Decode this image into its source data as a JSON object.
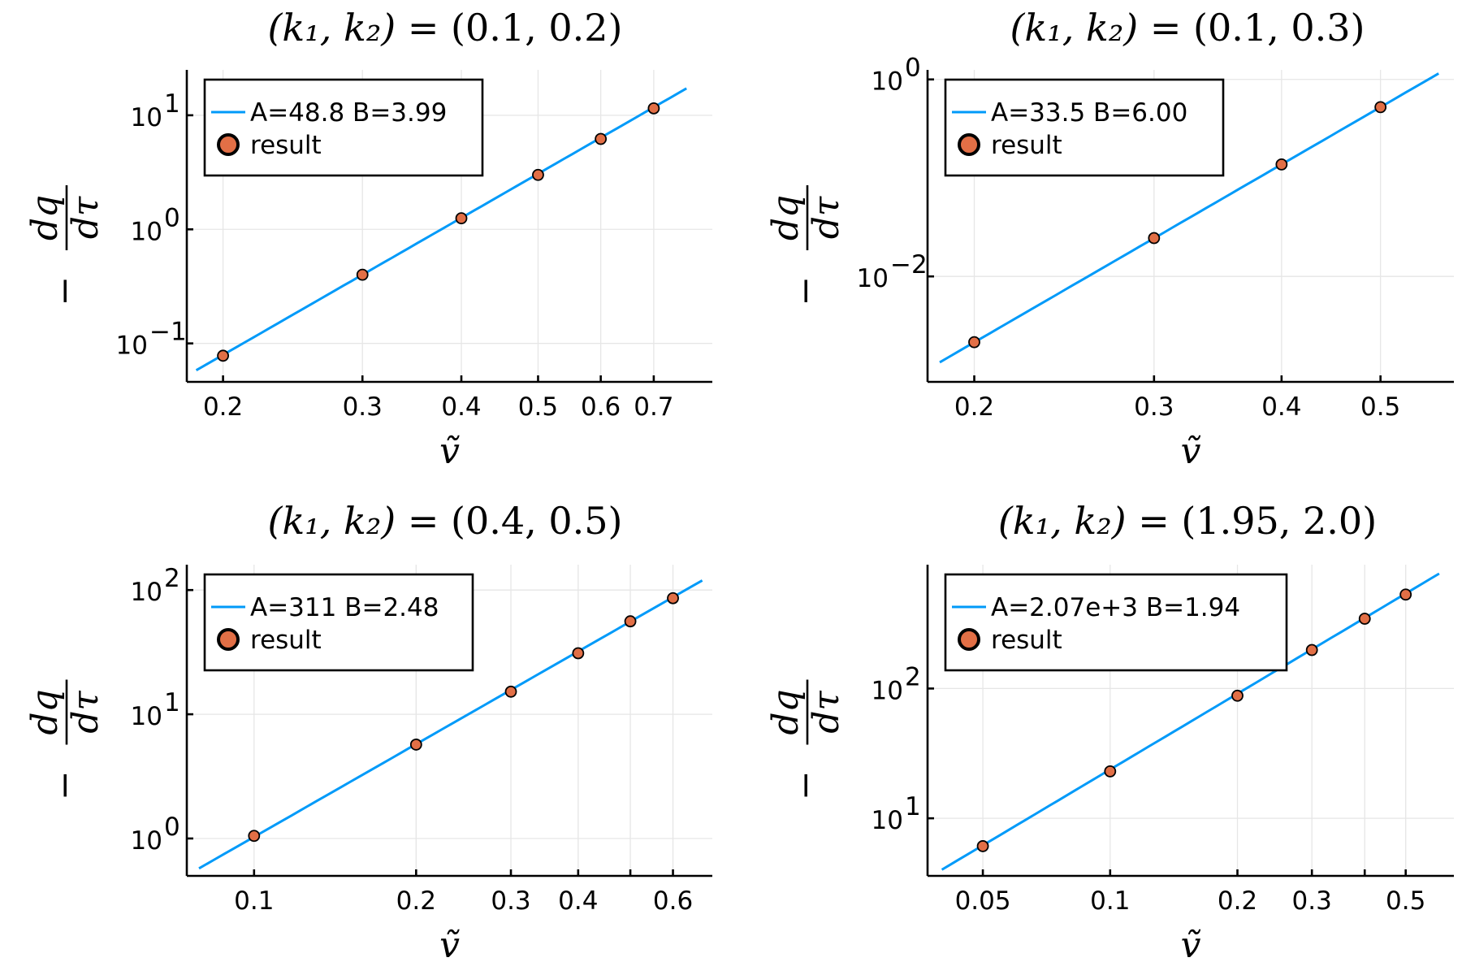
{
  "colors": {
    "fit_line": "#009af9",
    "points": "#e26f46",
    "axis": "#000000",
    "grid": "#e6e6e6"
  },
  "chart_data": [
    {
      "type": "scatter",
      "title_k": "(k₁, k₂)",
      "title_values": "(0.1, 0.2)",
      "xlabel": "ṽ",
      "ylabel": "−dq/dτ",
      "xscale": "log",
      "yscale": "log",
      "xlim": [
        0.18,
        0.83
      ],
      "ylim": [
        0.046,
        25
      ],
      "xticks": [
        0.2,
        0.3,
        0.4,
        0.5,
        0.6,
        0.7
      ],
      "xtick_labels": [
        "0.2",
        "0.3",
        "0.4",
        "0.5",
        "0.6",
        "0.7"
      ],
      "ytick_exponents": [
        "−1",
        "0",
        "1"
      ],
      "ytick_values": [
        0.1,
        1,
        10
      ],
      "grid": true,
      "legend_position": "top-left",
      "fit": {
        "label": "A=48.8 B=3.99",
        "A": 48.8,
        "B": 3.99,
        "x_range": [
          0.185,
          0.77
        ]
      },
      "series": [
        {
          "name": "result",
          "x": [
            0.2,
            0.3,
            0.4,
            0.5,
            0.6,
            0.7
          ],
          "y": [
            0.078,
            0.4,
            1.25,
            3.0,
            6.2,
            11.5
          ]
        }
      ]
    },
    {
      "type": "scatter",
      "title_k": "(k₁, k₂)",
      "title_values": "(0.1, 0.3)",
      "xlabel": "ṽ",
      "ylabel": "−dq/dτ",
      "xscale": "log",
      "yscale": "log",
      "xlim": [
        0.18,
        0.59
      ],
      "ylim": [
        0.00085,
        1.25
      ],
      "xticks": [
        0.2,
        0.3,
        0.4,
        0.5
      ],
      "xtick_labels": [
        "0.2",
        "0.3",
        "0.4",
        "0.5"
      ],
      "ytick_exponents": [
        "−2",
        "0"
      ],
      "ytick_values": [
        0.01,
        1
      ],
      "grid": true,
      "legend_position": "top-left",
      "fit": {
        "label": "A=33.5 B=6.00",
        "A": 33.5,
        "B": 6.0,
        "x_range": [
          0.185,
          0.57
        ]
      },
      "series": [
        {
          "name": "result",
          "x": [
            0.2,
            0.3,
            0.4,
            0.5
          ],
          "y": [
            0.00215,
            0.0245,
            0.137,
            0.523
          ]
        }
      ]
    },
    {
      "type": "scatter",
      "title_k": "(k₁, k₂)",
      "title_values": "(0.4, 0.5)",
      "xlabel": "ṽ",
      "ylabel": "−dq/dτ",
      "xscale": "log",
      "yscale": "log",
      "xlim": [
        0.075,
        0.71
      ],
      "ylim": [
        0.5,
        160
      ],
      "xticks": [
        0.1,
        0.2,
        0.3,
        0.4,
        0.5,
        0.6
      ],
      "xtick_labels": [
        "0.1",
        "0.2",
        "0.3",
        "0.4",
        "",
        "0.6"
      ],
      "ytick_exponents": [
        "0",
        "1",
        "2"
      ],
      "ytick_values": [
        1,
        10,
        100
      ],
      "grid": true,
      "legend_position": "top-left",
      "fit": {
        "label": "A=311 B=2.48",
        "A": 311,
        "B": 2.48,
        "x_range": [
          0.079,
          0.68
        ]
      },
      "series": [
        {
          "name": "result",
          "x": [
            0.1,
            0.2,
            0.3,
            0.4,
            0.5,
            0.6
          ],
          "y": [
            1.05,
            5.7,
            15.2,
            31.0,
            56.0,
            86.0
          ]
        }
      ]
    },
    {
      "type": "scatter",
      "title_k": "(k₁, k₂)",
      "title_values": "(1.95, 2.0)",
      "xlabel": "ṽ",
      "ylabel": "−dq/dτ",
      "xscale": "log",
      "yscale": "log",
      "xlim": [
        0.037,
        0.65
      ],
      "ylim": [
        3.6,
        900
      ],
      "xticks": [
        0.05,
        0.1,
        0.2,
        0.3,
        0.4,
        0.5
      ],
      "xtick_labels": [
        "0.05",
        "0.1",
        "0.2",
        "0.3",
        "",
        "0.5"
      ],
      "ytick_exponents": [
        "1",
        "2"
      ],
      "ytick_values": [
        10,
        100
      ],
      "grid": true,
      "legend_position": "top-left",
      "fit": {
        "label": "A=2.07e+3 B=1.94",
        "A": 2070,
        "B": 1.94,
        "x_range": [
          0.04,
          0.6
        ]
      },
      "series": [
        {
          "name": "result",
          "x": [
            0.05,
            0.1,
            0.2,
            0.3,
            0.4,
            0.5
          ],
          "y": [
            6.1,
            23.0,
            88.0,
            198.0,
            345.0,
            530.0
          ]
        }
      ]
    }
  ]
}
